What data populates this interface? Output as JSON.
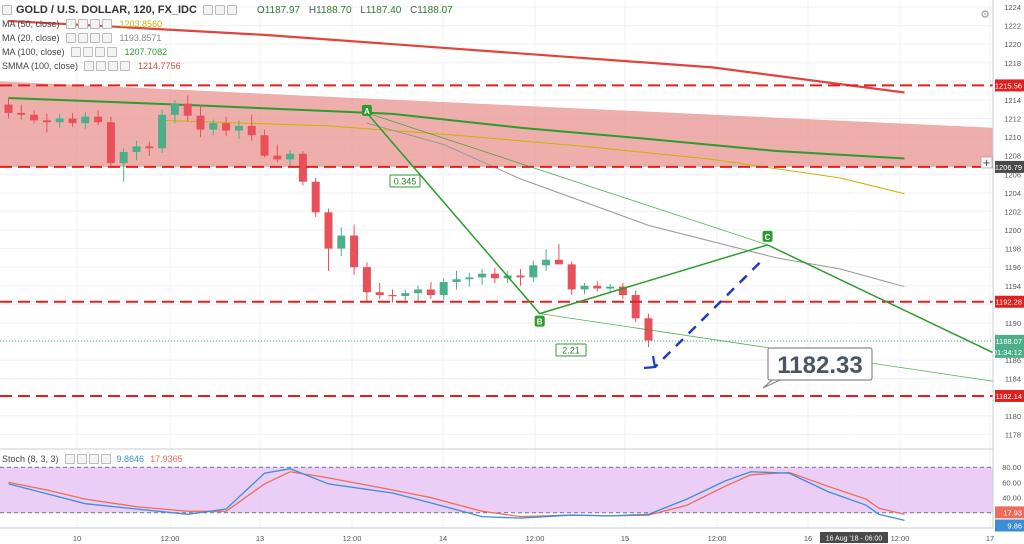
{
  "header": {
    "symbol": "GOLD / U.S. DOLLAR, 120, FX_IDC",
    "ohlc": [
      {
        "k": "O",
        "v": "1187.97"
      },
      {
        "k": "H",
        "v": "1188.70"
      },
      {
        "k": "L",
        "v": "1187.40"
      },
      {
        "k": "C",
        "v": "1188.07"
      }
    ]
  },
  "indicators": [
    {
      "name": "MA (50, close)",
      "value": "1203.8560",
      "color": "#c9b400"
    },
    {
      "name": "MA (20, close)",
      "value": "1193.8571",
      "color": "#999999"
    },
    {
      "name": "MA (100, close)",
      "value": "1207.7082",
      "color": "#2e9b2e"
    },
    {
      "name": "SMMA (100, close)",
      "value": "1214.7756",
      "color": "#e0443c"
    }
  ],
  "price_badges": {
    "current": "1188.07",
    "countdown": "01:34:12",
    "crosshair": "1206.79",
    "target": "1182.33"
  },
  "stoch": {
    "label": "Stoch (8, 3, 3)",
    "k_value": "9.8646",
    "d_value": "17.9365",
    "k_color": "#3c8fd6",
    "d_color": "#ef6b5a"
  },
  "time_badge": "16 Aug '18 - 06:00",
  "colors": {
    "up": "#4caf8a",
    "down": "#e8505a",
    "zone": "#e8908c",
    "level": "#e0201f",
    "pattern": "#2e9b2e",
    "arrow": "#1f3bc4",
    "stoch_bg": "#e6c5f5"
  },
  "chart_data": {
    "type": "candlestick",
    "ylim": [
      1176,
      1224
    ],
    "y_ticks": [
      1224,
      1222,
      1220,
      1218,
      1216,
      1214,
      1212,
      1210,
      1208,
      1206,
      1204,
      1202,
      1200,
      1198,
      1196,
      1194,
      1192,
      1190,
      1188,
      1186,
      1184,
      1182,
      1180,
      1178
    ],
    "x_ticks": [
      "10",
      "12:00",
      "13",
      "12:00",
      "14",
      "12:00",
      "15",
      "12:00",
      "16",
      "12:00",
      "17"
    ],
    "candles": [
      [
        1213.5,
        1214.2,
        1212.0,
        1212.6
      ],
      [
        1212.6,
        1213.5,
        1211.9,
        1212.4
      ],
      [
        1212.4,
        1212.9,
        1211.5,
        1211.8
      ],
      [
        1211.8,
        1212.5,
        1210.5,
        1211.6
      ],
      [
        1211.6,
        1212.5,
        1211.0,
        1212.0
      ],
      [
        1212.0,
        1212.6,
        1211.1,
        1211.5
      ],
      [
        1211.5,
        1212.7,
        1210.9,
        1212.2
      ],
      [
        1212.2,
        1212.9,
        1211.3,
        1211.6
      ],
      [
        1211.6,
        1212.2,
        1206.8,
        1207.2
      ],
      [
        1207.2,
        1208.8,
        1205.2,
        1208.4
      ],
      [
        1208.4,
        1209.6,
        1207.5,
        1209.0
      ],
      [
        1209.0,
        1209.5,
        1208.0,
        1208.8
      ],
      [
        1208.8,
        1213.0,
        1208.3,
        1212.4
      ],
      [
        1212.4,
        1214.0,
        1211.5,
        1213.6
      ],
      [
        1213.6,
        1214.5,
        1211.7,
        1212.3
      ],
      [
        1212.3,
        1213.5,
        1210.0,
        1210.8
      ],
      [
        1210.8,
        1211.9,
        1210.2,
        1211.5
      ],
      [
        1211.5,
        1212.2,
        1210.1,
        1210.7
      ],
      [
        1210.7,
        1211.8,
        1209.8,
        1211.2
      ],
      [
        1211.2,
        1212.4,
        1209.6,
        1210.2
      ],
      [
        1210.2,
        1210.8,
        1207.8,
        1208.0
      ],
      [
        1208.0,
        1209.2,
        1207.3,
        1207.6
      ],
      [
        1207.6,
        1208.6,
        1206.8,
        1208.2
      ],
      [
        1208.2,
        1208.5,
        1204.8,
        1205.2
      ],
      [
        1205.2,
        1205.6,
        1201.4,
        1201.9
      ],
      [
        1201.9,
        1202.3,
        1195.6,
        1198.0
      ],
      [
        1198.0,
        1200.3,
        1197.2,
        1199.4
      ],
      [
        1199.4,
        1200.6,
        1195.2,
        1196.0
      ],
      [
        1196.0,
        1196.5,
        1192.2,
        1193.3
      ],
      [
        1193.3,
        1194.3,
        1192.6,
        1193.0
      ],
      [
        1193.0,
        1193.6,
        1192.2,
        1192.9
      ],
      [
        1192.9,
        1193.6,
        1192.2,
        1193.2
      ],
      [
        1193.2,
        1194.0,
        1192.3,
        1193.6
      ],
      [
        1193.6,
        1194.4,
        1192.6,
        1193.0
      ],
      [
        1193.0,
        1194.8,
        1192.5,
        1194.4
      ],
      [
        1194.4,
        1195.6,
        1193.6,
        1194.7
      ],
      [
        1194.7,
        1195.4,
        1193.9,
        1194.9
      ],
      [
        1194.9,
        1195.8,
        1194.1,
        1195.3
      ],
      [
        1195.3,
        1195.9,
        1194.3,
        1194.8
      ],
      [
        1194.8,
        1195.6,
        1194.3,
        1195.1
      ],
      [
        1195.1,
        1195.8,
        1194.0,
        1194.9
      ],
      [
        1194.9,
        1196.7,
        1194.4,
        1196.2
      ],
      [
        1196.2,
        1197.9,
        1195.6,
        1196.8
      ],
      [
        1196.8,
        1198.5,
        1196.4,
        1196.3
      ],
      [
        1196.3,
        1196.6,
        1193.0,
        1193.6
      ],
      [
        1193.6,
        1194.3,
        1193.1,
        1194.0
      ],
      [
        1194.0,
        1194.5,
        1193.4,
        1193.7
      ],
      [
        1193.7,
        1194.2,
        1193.2,
        1193.9
      ],
      [
        1193.9,
        1194.3,
        1192.6,
        1193.0
      ],
      [
        1193.0,
        1193.5,
        1190.1,
        1190.5
      ],
      [
        1190.5,
        1191.0,
        1187.4,
        1188.1
      ]
    ],
    "horizontal_levels": [
      1215.56,
      1206.79,
      1192.28,
      1182.14
    ],
    "zone": {
      "top_left": 1216.0,
      "bottom": 1206.79,
      "top_right": 1211.0
    },
    "pattern": {
      "A": {
        "x": 28,
        "y": 1212.6
      },
      "B": {
        "x": 41.5,
        "y": 1191.0
      },
      "C": {
        "x": 59.3,
        "y": 1198.4
      },
      "D": {
        "x": 83.7,
        "y": 1182.33
      }
    },
    "pattern_ratios": [
      "0.345",
      "2.21"
    ],
    "series": [
      {
        "name": "SMMA (100, close)",
        "color": "#e0443c",
        "x": [
          0,
          20,
          40,
          55,
          70
        ],
        "values": [
          1222.5,
          1221.0,
          1219.0,
          1217.5,
          1214.8
        ]
      },
      {
        "name": "MA (100, close)",
        "color": "#2e9b2e",
        "x": [
          0,
          15,
          30,
          40,
          50,
          60,
          70
        ],
        "values": [
          1214.2,
          1213.4,
          1212.5,
          1211.0,
          1209.8,
          1208.5,
          1207.7
        ]
      },
      {
        "name": "MA (50, close)",
        "color": "#c9b400",
        "x": [
          12,
          25,
          35,
          45,
          55,
          65,
          70
        ],
        "values": [
          1211.8,
          1211.2,
          1210.2,
          1209.0,
          1207.6,
          1205.6,
          1203.9
        ]
      },
      {
        "name": "MA (20, close)",
        "color": "#999999",
        "x": [
          28,
          34,
          40,
          50,
          60,
          65,
          70
        ],
        "values": [
          1211.5,
          1209.2,
          1205.5,
          1200.5,
          1197.0,
          1195.8,
          1193.9
        ]
      }
    ],
    "stochastic": {
      "ylim": [
        0,
        100
      ],
      "ticks": [
        80,
        60,
        40,
        20
      ],
      "bands": [
        80,
        20
      ],
      "k": {
        "x": [
          0,
          3,
          6,
          10,
          14,
          17,
          20,
          22,
          25,
          30,
          33,
          37,
          40,
          44,
          47,
          50,
          53,
          56,
          58,
          61,
          64,
          67,
          68,
          70
        ],
        "values": [
          58,
          45,
          32,
          25,
          18,
          25,
          72,
          78,
          58,
          46,
          33,
          15,
          13,
          17,
          16,
          18,
          38,
          62,
          74,
          72,
          48,
          30,
          18,
          10
        ]
      },
      "d": {
        "x": [
          0,
          3,
          6,
          10,
          14,
          17,
          20,
          22,
          25,
          30,
          33,
          37,
          40,
          44,
          47,
          50,
          53,
          56,
          58,
          61,
          64,
          67,
          68,
          70
        ],
        "values": [
          60,
          50,
          38,
          28,
          22,
          22,
          58,
          74,
          66,
          50,
          40,
          22,
          15,
          17,
          16,
          17,
          30,
          55,
          70,
          73,
          55,
          38,
          26,
          18
        ]
      }
    }
  }
}
